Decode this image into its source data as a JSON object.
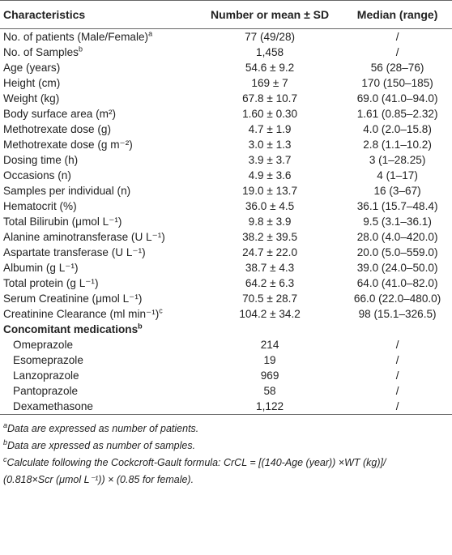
{
  "table": {
    "headers": [
      "Characteristics",
      "Number or mean ± SD",
      "Median (range)"
    ],
    "rows": [
      {
        "cells": [
          "No. of patients (Male/Female)",
          "77 (49/28)",
          "/"
        ],
        "note": "a"
      },
      {
        "cells": [
          "No. of Samples",
          "1,458",
          "/"
        ],
        "note": "b"
      },
      {
        "cells": [
          "Age (years)",
          "54.6 ± 9.2",
          "56 (28–76)"
        ]
      },
      {
        "cells": [
          "Height (cm)",
          "169 ± 7",
          "170 (150–185)"
        ]
      },
      {
        "cells": [
          "Weight (kg)",
          "67.8 ± 10.7",
          "69.0 (41.0–94.0)"
        ]
      },
      {
        "cells": [
          "Body surface area (m²)",
          "1.60 ± 0.30",
          "1.61 (0.85–2.32)"
        ]
      },
      {
        "cells": [
          "Methotrexate dose (g)",
          "4.7 ± 1.9",
          "4.0 (2.0–15.8)"
        ]
      },
      {
        "cells": [
          "Methotrexate dose (g m⁻²)",
          "3.0 ± 1.3",
          "2.8 (1.1–10.2)"
        ]
      },
      {
        "cells": [
          "Dosing time (h)",
          "3.9 ± 3.7",
          "3 (1–28.25)"
        ]
      },
      {
        "cells": [
          "Occasions (n)",
          "4.9 ± 3.6",
          "4 (1–17)"
        ]
      },
      {
        "cells": [
          "Samples per individual (n)",
          "19.0 ± 13.7",
          "16 (3–67)"
        ]
      },
      {
        "cells": [
          "Hematocrit (%)",
          "36.0 ± 4.5",
          "36.1 (15.7–48.4)"
        ]
      },
      {
        "cells": [
          "Total Bilirubin (μmol L⁻¹)",
          "9.8 ± 3.9",
          "9.5 (3.1–36.1)"
        ]
      },
      {
        "cells": [
          "Alanine aminotransferase (U L⁻¹)",
          "38.2 ± 39.5",
          "28.0 (4.0–420.0)"
        ]
      },
      {
        "cells": [
          "Aspartate transferase (U L⁻¹)",
          "24.7 ± 22.0",
          "20.0 (5.0–559.0)"
        ]
      },
      {
        "cells": [
          "Albumin (g L⁻¹)",
          "38.7 ± 4.3",
          "39.0 (24.0–50.0)"
        ]
      },
      {
        "cells": [
          "Total protein (g L⁻¹)",
          "64.2 ± 6.3",
          "64.0 (41.0–82.0)"
        ]
      },
      {
        "cells": [
          "Serum Creatinine (μmol L⁻¹)",
          "70.5 ± 28.7",
          "66.0 (22.0–480.0)"
        ]
      },
      {
        "cells": [
          "Creatinine Clearance (ml min⁻¹)",
          "104.2 ± 34.2",
          "98 (15.1–326.5)"
        ],
        "note": "c"
      }
    ],
    "section": {
      "title": "Concomitant medications",
      "note": "b",
      "rows": [
        {
          "cells": [
            "Omeprazole",
            "214",
            "/"
          ]
        },
        {
          "cells": [
            "Esomeprazole",
            "19",
            "/"
          ]
        },
        {
          "cells": [
            "Lanzoprazole",
            "969",
            "/"
          ]
        },
        {
          "cells": [
            "Pantoprazole",
            "58",
            "/"
          ]
        },
        {
          "cells": [
            "Dexamethasone",
            "1,122",
            "/"
          ]
        }
      ]
    }
  },
  "footnotes": [
    {
      "marker": "a",
      "text": "Data are expressed as number of patients."
    },
    {
      "marker": "b",
      "text": "Data are xpressed as number of samples."
    },
    {
      "marker": "c",
      "text": "Calculate following the Cockcroft-Gault formula: CrCL = [(140-Age (year)) ×WT (kg)]/ (0.818×Scr (μmol L⁻¹)) × (0.85 for female)."
    }
  ]
}
